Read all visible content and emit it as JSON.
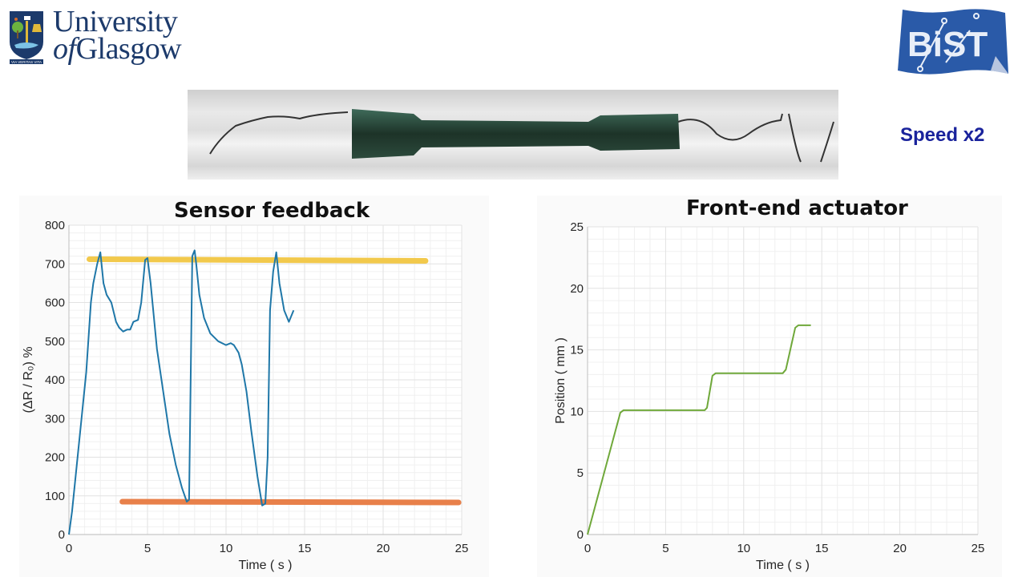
{
  "header": {
    "university_logo": {
      "line1": "University",
      "line2_prefix": "of",
      "line2": "Glasgow",
      "motto": "VIA VERITAS VITA"
    },
    "lab_logo": {
      "text": "BiST"
    }
  },
  "photo": {
    "description": "sensor-in-tube-photo"
  },
  "speed_label": "Speed x2",
  "colors": {
    "sensor_line": "#1f77a8",
    "actuator_line": "#6fa83a",
    "upper_threshold": "#f2c94c",
    "lower_threshold": "#e8804a",
    "speed_text": "#1a239c",
    "uog_blue": "#1c3a6b"
  },
  "chart_data": [
    {
      "type": "line",
      "title": "Sensor feedback",
      "xlabel": "Time ( s )",
      "ylabel": "(ΔR / R₀) %",
      "xlim": [
        0,
        25
      ],
      "ylim": [
        0,
        800
      ],
      "xticks": [
        0,
        5,
        10,
        15,
        20,
        25
      ],
      "yticks": [
        0,
        100,
        200,
        300,
        400,
        500,
        600,
        700,
        800
      ],
      "grid": true,
      "series": [
        {
          "name": "sensor",
          "color": "#1f77a8",
          "x": [
            0,
            0.2,
            0.5,
            0.8,
            1.1,
            1.4,
            1.55,
            1.8,
            2.0,
            2.2,
            2.4,
            2.7,
            3.0,
            3.2,
            3.45,
            3.7,
            3.9,
            4.1,
            4.4,
            4.6,
            4.85,
            5.0,
            5.2,
            5.6,
            6.0,
            6.4,
            6.8,
            7.2,
            7.5,
            7.65,
            7.85,
            8.0,
            8.1,
            8.3,
            8.6,
            9.0,
            9.5,
            10.0,
            10.3,
            10.5,
            10.8,
            11.0,
            11.3,
            11.6,
            12.0,
            12.3,
            12.5,
            12.65,
            12.8,
            13.0,
            13.2,
            13.4,
            13.7,
            14.0,
            14.3
          ],
          "y": [
            0,
            60,
            180,
            300,
            420,
            600,
            650,
            700,
            730,
            650,
            620,
            600,
            550,
            535,
            525,
            530,
            530,
            550,
            555,
            600,
            710,
            715,
            650,
            480,
            370,
            260,
            180,
            120,
            85,
            90,
            720,
            735,
            700,
            620,
            560,
            520,
            500,
            490,
            495,
            490,
            470,
            440,
            370,
            270,
            150,
            75,
            80,
            200,
            580,
            680,
            730,
            650,
            580,
            550,
            580
          ]
        }
      ],
      "annotations": [
        {
          "type": "hline",
          "label": "upper-threshold",
          "y": 712,
          "x_start": 1.3,
          "x_end": 22.7,
          "color": "#f2c94c"
        },
        {
          "type": "hline",
          "label": "lower-threshold",
          "y": 85,
          "x_start": 3.4,
          "x_end": 24.8,
          "color": "#e8804a"
        }
      ]
    },
    {
      "type": "line",
      "title": "Front-end actuator",
      "xlabel": "Time ( s )",
      "ylabel": "Position ( mm )",
      "xlim": [
        0,
        25
      ],
      "ylim": [
        0,
        25
      ],
      "xticks": [
        0,
        5,
        10,
        15,
        20,
        25
      ],
      "yticks": [
        0,
        5,
        10,
        15,
        20,
        25
      ],
      "grid": true,
      "series": [
        {
          "name": "position",
          "color": "#6fa83a",
          "x": [
            0,
            2.1,
            2.3,
            7.5,
            7.65,
            8.0,
            8.2,
            12.5,
            12.7,
            13.3,
            13.5,
            14.3
          ],
          "y": [
            0,
            9.9,
            10.1,
            10.1,
            10.3,
            12.9,
            13.1,
            13.1,
            13.4,
            16.8,
            17.0,
            17.0
          ]
        }
      ]
    }
  ]
}
